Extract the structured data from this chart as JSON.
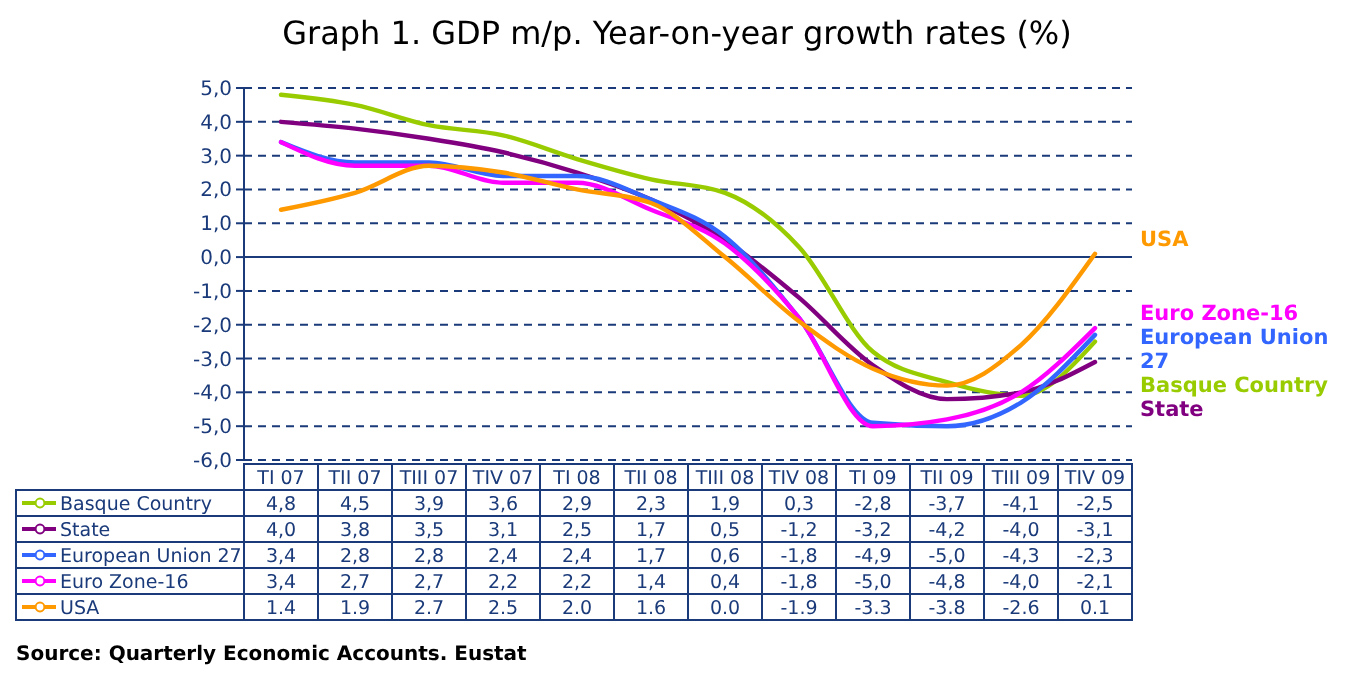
{
  "chart_data": {
    "type": "line",
    "title": "Graph 1. GDP m/p. Year-on-year growth rates (%)",
    "categories": [
      "TI 07",
      "TII 07",
      "TIII 07",
      "TIV 07",
      "TI 08",
      "TII 08",
      "TIII 08",
      "TIV 08",
      "TI 09",
      "TII 09",
      "TIII 09",
      "TIV 09"
    ],
    "series": [
      {
        "name": "Basque Country",
        "color": "#99cc00",
        "values": [
          4.8,
          4.5,
          3.9,
          3.6,
          2.9,
          2.3,
          1.9,
          0.3,
          -2.8,
          -3.7,
          -4.1,
          -2.5
        ],
        "value_labels": [
          "4,8",
          "4,5",
          "3,9",
          "3,6",
          "2,9",
          "2,3",
          "1,9",
          "0,3",
          "-2,8",
          "-3,7",
          "-4,1",
          "-2,5"
        ]
      },
      {
        "name": "State",
        "color": "#800080",
        "values": [
          4.0,
          3.8,
          3.5,
          3.1,
          2.5,
          1.7,
          0.5,
          -1.2,
          -3.2,
          -4.2,
          -4.0,
          -3.1
        ],
        "value_labels": [
          "4,0",
          "3,8",
          "3,5",
          "3,1",
          "2,5",
          "1,7",
          "0,5",
          "-1,2",
          "-3,2",
          "-4,2",
          "-4,0",
          "-3,1"
        ]
      },
      {
        "name": "European Union 27",
        "color": "#3366ff",
        "values": [
          3.4,
          2.8,
          2.8,
          2.4,
          2.4,
          1.7,
          0.6,
          -1.8,
          -4.9,
          -5.0,
          -4.3,
          -2.3
        ],
        "value_labels": [
          "3,4",
          "2,8",
          "2,8",
          "2,4",
          "2,4",
          "1,7",
          "0,6",
          "-1,8",
          "-4,9",
          "-5,0",
          "-4,3",
          "-2,3"
        ]
      },
      {
        "name": "Euro Zone-16",
        "color": "#ff00ff",
        "values": [
          3.4,
          2.7,
          2.7,
          2.2,
          2.2,
          1.4,
          0.4,
          -1.8,
          -5.0,
          -4.8,
          -4.0,
          -2.1
        ],
        "value_labels": [
          "3,4",
          "2,7",
          "2,7",
          "2,2",
          "2,2",
          "1,4",
          "0,4",
          "-1,8",
          "-5,0",
          "-4,8",
          "-4,0",
          "-2,1"
        ]
      },
      {
        "name": "USA",
        "color": "#ff9900",
        "values": [
          1.4,
          1.9,
          2.7,
          2.5,
          2.0,
          1.6,
          0.0,
          -1.9,
          -3.3,
          -3.8,
          -2.6,
          0.1
        ],
        "value_labels": [
          "1.4",
          "1.9",
          "2.7",
          "2.5",
          "2.0",
          "1.6",
          "0.0",
          "-1.9",
          "-3.3",
          "-3.8",
          "-2.6",
          "0.1"
        ]
      }
    ],
    "ylim": [
      -6,
      5
    ],
    "yticks": [
      {
        "value": 5,
        "label": "5,0"
      },
      {
        "value": 4,
        "label": "4,0"
      },
      {
        "value": 3,
        "label": "3,0"
      },
      {
        "value": 2,
        "label": "2,0"
      },
      {
        "value": 1,
        "label": "1,0"
      },
      {
        "value": 0,
        "label": "0,0"
      },
      {
        "value": -1,
        "label": "-1,0"
      },
      {
        "value": -2,
        "label": "-2,0"
      },
      {
        "value": -3,
        "label": "-3,0"
      },
      {
        "value": -4,
        "label": "-4,0"
      },
      {
        "value": -5,
        "label": "-5,0"
      },
      {
        "value": -6,
        "label": "-6,0"
      }
    ],
    "ref_lines": [
      {
        "axis": "y",
        "value": 0,
        "color": "#1a3a7a",
        "line_style": "solid"
      }
    ],
    "grid": "y",
    "legend": "bottom",
    "marker": "none",
    "line_style": "solid",
    "annotations": [
      "Source: Quarterly Economic Accounts. Eustat"
    ]
  }
}
